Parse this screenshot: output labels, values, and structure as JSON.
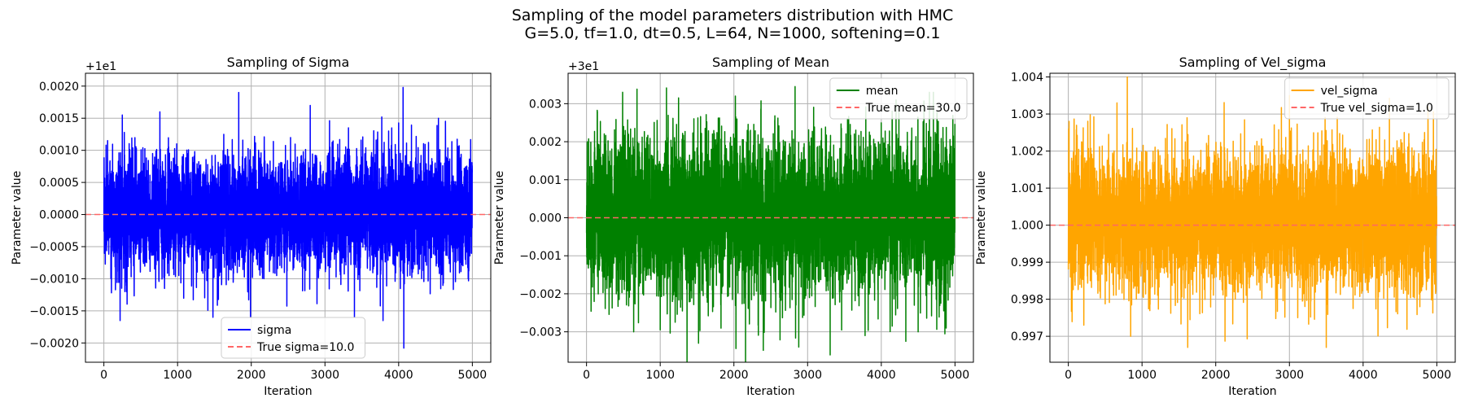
{
  "figure": {
    "title_line1": "Sampling of the model parameters distribution with HMC",
    "title_line2": "G=5.0, tf=1.0, dt=0.5, L=64, N=1000, softening=0.1"
  },
  "chart_data": [
    {
      "type": "line",
      "title": "Sampling of Sigma",
      "xlabel": "Iteration",
      "ylabel": "Parameter value",
      "offset_text": "+1e1",
      "xlim": [
        -250,
        5250
      ],
      "ylim": [
        -0.0023,
        0.0022
      ],
      "xticks": [
        0,
        1000,
        2000,
        3000,
        4000,
        5000
      ],
      "yticks": [
        -0.002,
        -0.0015,
        -0.001,
        -0.0005,
        0.0,
        0.0005,
        0.001,
        0.0015,
        0.002
      ],
      "ytick_labels": [
        "−0.0020",
        "−0.0015",
        "−0.0010",
        "−0.0005",
        "0.0000",
        "0.0005",
        "0.0010",
        "0.0015",
        "0.0020"
      ],
      "grid": true,
      "legend_position": "lower-center",
      "series": [
        {
          "name": "sigma",
          "color": "#0000ff",
          "n_iterations": 5000,
          "typical_range": [
            -0.0009,
            0.0011
          ],
          "peaks": [
            [
              30,
              0.00108
            ],
            [
              220,
              -0.00165
            ],
            [
              250,
              0.00155
            ],
            [
              760,
              0.0016
            ],
            [
              1480,
              -0.0016
            ],
            [
              1830,
              0.0019
            ],
            [
              1990,
              -0.0016
            ],
            [
              2800,
              0.0017
            ],
            [
              3400,
              -0.0016
            ],
            [
              4060,
              0.00198
            ],
            [
              4070,
              -0.00208
            ],
            [
              4540,
              0.0015
            ]
          ]
        },
        {
          "name": "True sigma=10.0",
          "color": "#ff6666",
          "style": "dashed",
          "value": 0.0
        }
      ]
    },
    {
      "type": "line",
      "title": "Sampling of Mean",
      "xlabel": "Iteration",
      "ylabel": "Parameter value",
      "offset_text": "+3e1",
      "xlim": [
        -250,
        5250
      ],
      "ylim": [
        -0.0038,
        0.0038
      ],
      "xticks": [
        0,
        1000,
        2000,
        3000,
        4000,
        5000
      ],
      "yticks": [
        -0.003,
        -0.002,
        -0.001,
        0.0,
        0.001,
        0.002,
        0.003
      ],
      "ytick_labels": [
        "−0.003",
        "−0.002",
        "−0.001",
        "0.000",
        "0.001",
        "0.002",
        "0.003"
      ],
      "grid": true,
      "legend_position": "top-right",
      "series": [
        {
          "name": "mean",
          "color": "#008000",
          "n_iterations": 5000,
          "typical_range": [
            -0.0022,
            0.0024
          ],
          "peaks": [
            [
              10,
              0.002
            ],
            [
              490,
              0.0033
            ],
            [
              640,
              -0.003
            ],
            [
              1520,
              -0.0033
            ],
            [
              2020,
              0.0032
            ],
            [
              2830,
              0.00345
            ],
            [
              2880,
              -0.0034
            ],
            [
              3780,
              -0.0031
            ],
            [
              4200,
              0.0031
            ],
            [
              4500,
              -0.003
            ],
            [
              4880,
              -0.0029
            ]
          ]
        },
        {
          "name": "True mean=30.0",
          "color": "#ff6666",
          "style": "dashed",
          "value": 0.0
        }
      ]
    },
    {
      "type": "line",
      "title": "Sampling of Vel_sigma",
      "xlabel": "Iteration",
      "ylabel": "Parameter value",
      "offset_text": "",
      "xlim": [
        -250,
        5250
      ],
      "ylim": [
        0.9963,
        1.0041
      ],
      "xticks": [
        0,
        1000,
        2000,
        3000,
        4000,
        5000
      ],
      "yticks": [
        0.997,
        0.998,
        0.999,
        1.0,
        1.001,
        1.002,
        1.003,
        1.004
      ],
      "ytick_labels": [
        "0.997",
        "0.998",
        "0.999",
        "1.000",
        "1.001",
        "1.002",
        "1.003",
        "1.004"
      ],
      "grid": true,
      "legend_position": "top-right",
      "series": [
        {
          "name": "vel_sigma",
          "color": "#ffa500",
          "n_iterations": 5000,
          "typical_range": [
            0.9982,
            1.0024
          ],
          "peaks": [
            [
              10,
              1.0028
            ],
            [
              210,
              0.9973
            ],
            [
              660,
              1.0033
            ],
            [
              800,
              1.004
            ],
            [
              1620,
              0.9967
            ],
            [
              3000,
              1.0035
            ],
            [
              3500,
              0.9967
            ],
            [
              4880,
              1.0032
            ]
          ]
        },
        {
          "name": "True vel_sigma=1.0",
          "color": "#ff6666",
          "style": "dashed",
          "value": 1.0
        }
      ]
    }
  ]
}
